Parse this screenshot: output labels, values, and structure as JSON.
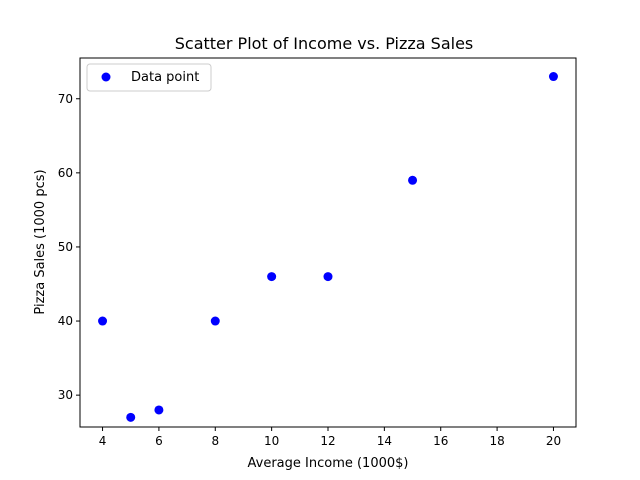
{
  "chart_data": {
    "type": "scatter",
    "title": "Scatter Plot of Income vs. Pizza Sales",
    "xlabel": "Average Income (1000$)",
    "ylabel": "Pizza Sales (1000 pcs)",
    "xlim": [
      3.2,
      20.8
    ],
    "ylim": [
      25.7,
      75.5
    ],
    "xticks": [
      4,
      6,
      8,
      10,
      12,
      14,
      16,
      18,
      20
    ],
    "yticks": [
      30,
      40,
      50,
      60,
      70
    ],
    "grid": false,
    "legend_position": "top-left",
    "series": [
      {
        "name": "Data point",
        "color": "#0000ff",
        "marker": "circle",
        "points": [
          {
            "x": 4,
            "y": 40
          },
          {
            "x": 5,
            "y": 27
          },
          {
            "x": 6,
            "y": 28
          },
          {
            "x": 8,
            "y": 40
          },
          {
            "x": 10,
            "y": 46
          },
          {
            "x": 12,
            "y": 46
          },
          {
            "x": 15,
            "y": 59
          },
          {
            "x": 20,
            "y": 73
          }
        ]
      }
    ]
  }
}
